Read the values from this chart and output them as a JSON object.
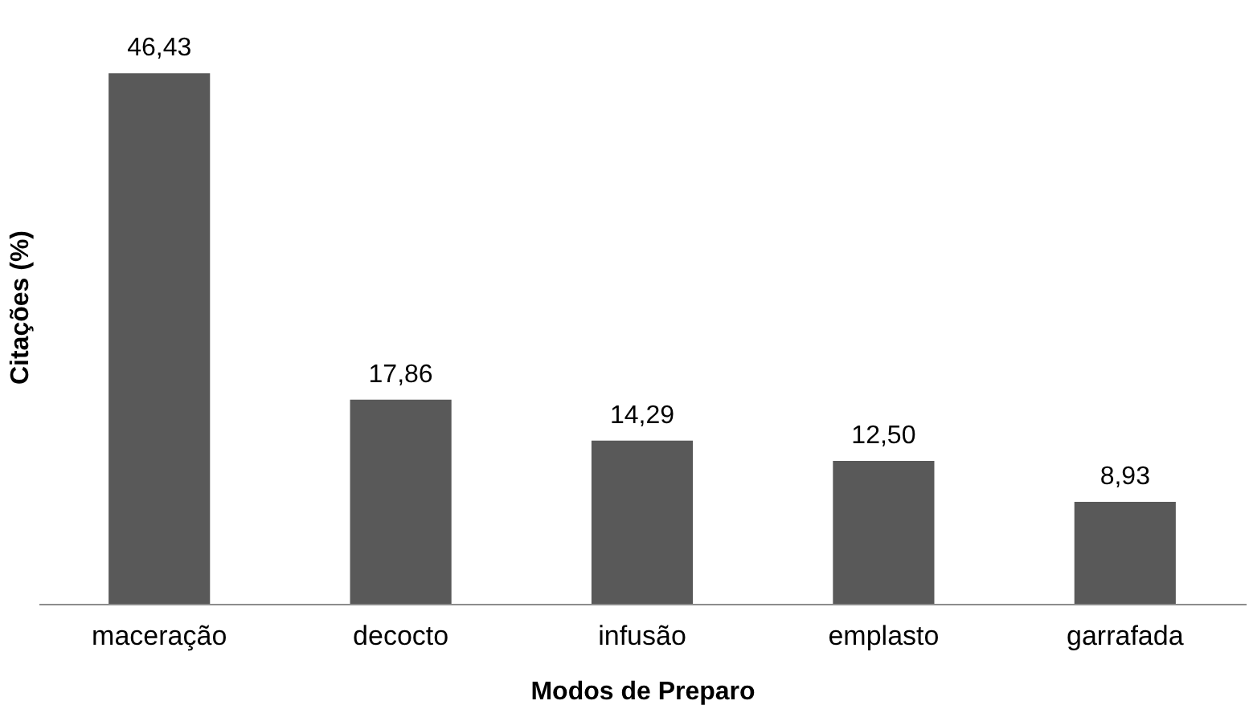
{
  "chart_data": {
    "type": "bar",
    "xlabel": "Modos de Preparo",
    "ylabel": "Citações (%)",
    "categories": [
      "maceração",
      "decocto",
      "infusão",
      "emplasto",
      "garrafada"
    ],
    "values": [
      46.43,
      17.86,
      14.29,
      12.5,
      8.93
    ],
    "value_labels": [
      "46,43",
      "17,86",
      "14,29",
      "12,50",
      "8,93"
    ],
    "color": "#595959"
  }
}
